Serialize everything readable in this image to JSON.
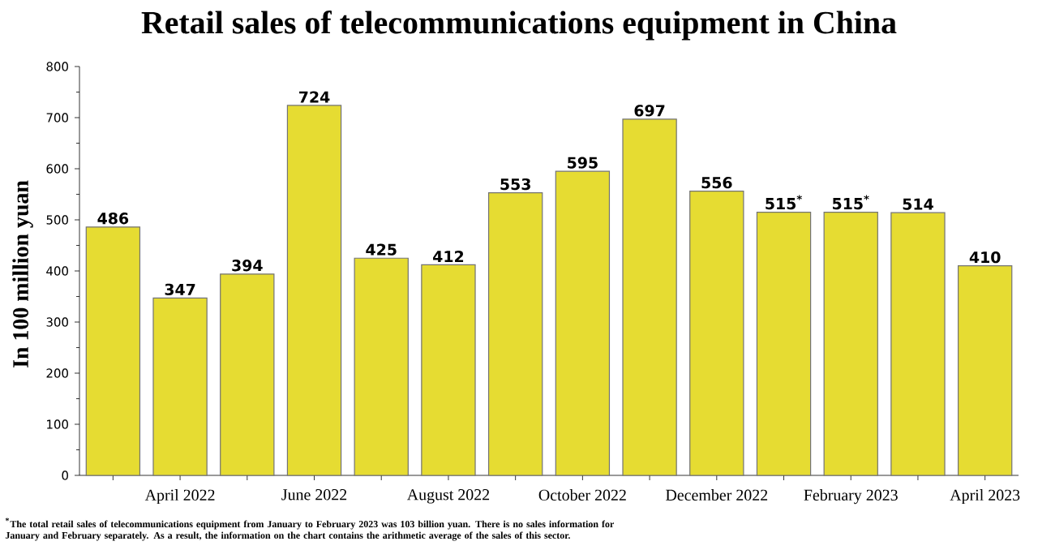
{
  "chart_data": {
    "type": "bar",
    "title": "Retail sales of telecommunications equipment in China",
    "ylabel": "In 100 million yuan",
    "categories": [
      null,
      "April 2022",
      null,
      "June 2022",
      null,
      "August 2022",
      null,
      "October 2022",
      null,
      "December 2022",
      null,
      "February 2023",
      null,
      "April 2023"
    ],
    "values": [
      486,
      347,
      394,
      724,
      425,
      412,
      553,
      595,
      697,
      556,
      515,
      515,
      514,
      410
    ],
    "value_labels": [
      "486",
      "347",
      "394",
      "724",
      "425",
      "412",
      "553",
      "595",
      "697",
      "556",
      "515$^{*}$",
      "515$^{*}$",
      "514",
      "410"
    ],
    "color": "#e6dc32",
    "ylim": [
      0,
      800
    ],
    "yticks": [
      0,
      100,
      200,
      300,
      400,
      500,
      600,
      700,
      800
    ],
    "grid": false,
    "annotations": [
      "$^{*}$The total retail sales of telecommunications equipment from January to February 2023 was 103 billion yuan. There is no sales information for January and February separately. As a result, the information on the chart contains the arithmetic average of the sales of this sector."
    ]
  }
}
